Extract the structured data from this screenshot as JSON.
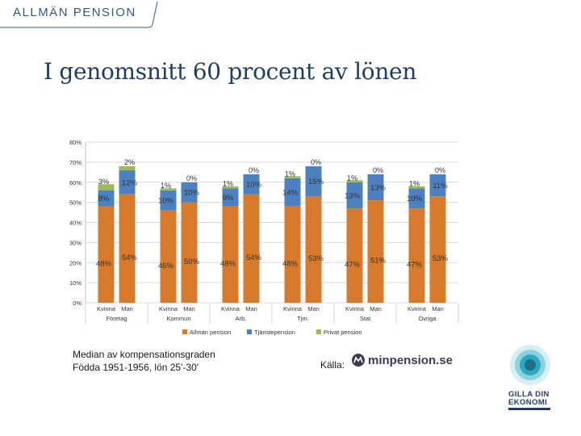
{
  "header": {
    "label": "ALLMÄN PENSION"
  },
  "title": "I genomsnitt 60 procent av lönen",
  "footnote": {
    "line1": "Median av kompensationsgraden",
    "line2": "Födda 1951-1956, lön 25'-30'"
  },
  "source": {
    "label": "Källa:",
    "logo_text": "minpension.se"
  },
  "brand": {
    "line1": "GILLA DIN",
    "line2": "EKONOMI"
  },
  "colors": {
    "allman": "#d87a2b",
    "tjanste": "#4d80bf",
    "privat": "#9cba5a",
    "title": "#1f3e61"
  },
  "chart_data": {
    "type": "bar",
    "stacked": true,
    "title": "",
    "xlabel": "",
    "ylabel": "",
    "ylim": [
      0,
      80
    ],
    "yticks": [
      "0%",
      "10%",
      "20%",
      "30%",
      "40%",
      "50%",
      "60%",
      "70%",
      "80%"
    ],
    "grid": true,
    "legend_position": "bottom",
    "categories": [
      "Kvinna",
      "Man",
      "Kvinna",
      "Man",
      "Kvinna",
      "Man",
      "Kvinna",
      "Man",
      "Kvinna",
      "Man",
      "Kvinna",
      "Man"
    ],
    "groups": [
      "Företag",
      "Kommun",
      "Arb.",
      "Tjm.",
      "Stat",
      "Övriga"
    ],
    "series": [
      {
        "name": "Allmän pension",
        "values": [
          48,
          54,
          46,
          50,
          48,
          54,
          48,
          53,
          47,
          51,
          47,
          53
        ],
        "labels": [
          "48%",
          "54%",
          "46%",
          "50%",
          "48%",
          "54%",
          "48%",
          "53%",
          "47%",
          "51%",
          "47%",
          "53%"
        ]
      },
      {
        "name": "Tjänstepension",
        "values": [
          8,
          12,
          10,
          10,
          9,
          10,
          14,
          15,
          13,
          13,
          10,
          11
        ],
        "labels": [
          "8%",
          "12%",
          "10%",
          "10%",
          "9%",
          "10%",
          "14%",
          "15%",
          "13%",
          "13%",
          "10%",
          "11%"
        ]
      },
      {
        "name": "Privat pension",
        "values": [
          3,
          2,
          1,
          0,
          1,
          0,
          1,
          0,
          1,
          0,
          1,
          0
        ],
        "labels": [
          "3%",
          "2%",
          "1%",
          "0%",
          "1%",
          "0%",
          "1%",
          "0%",
          "1%",
          "0%",
          "1%",
          "0%"
        ]
      }
    ]
  }
}
